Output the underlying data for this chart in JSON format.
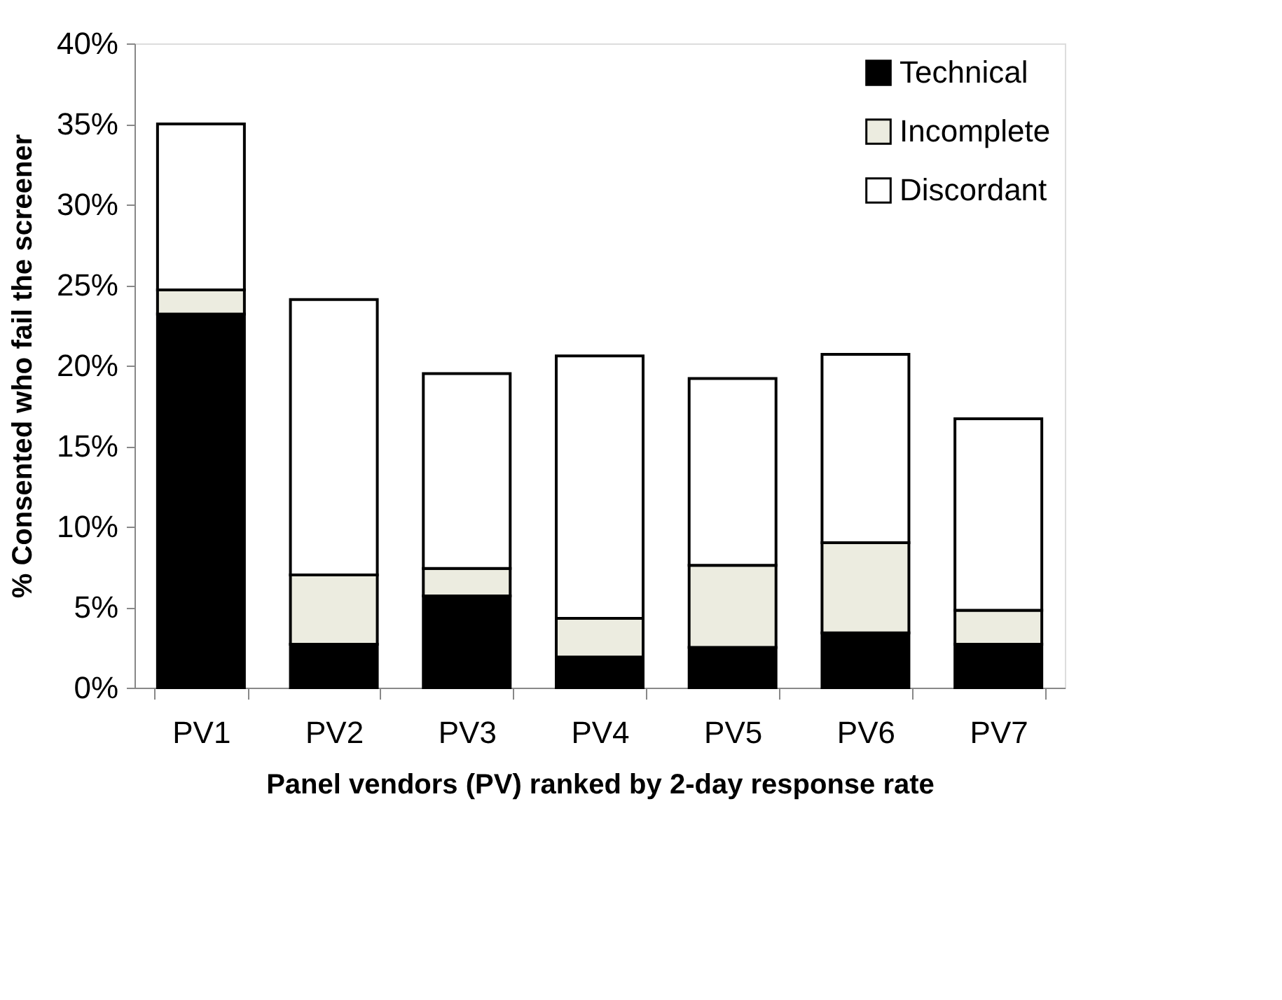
{
  "chart_data": {
    "type": "bar",
    "stacked": true,
    "xlabel": "Panel vendors (PV) ranked by 2-day response rate",
    "ylabel": "% Consented who fail the screener",
    "categories": [
      "PV1",
      "PV2",
      "PV3",
      "PV4",
      "PV5",
      "PV6",
      "PV7"
    ],
    "series": [
      {
        "name": "Technical",
        "color": "#000000",
        "values": [
          23.2,
          2.7,
          5.7,
          1.9,
          2.5,
          3.4,
          2.7
        ]
      },
      {
        "name": "Incomplete",
        "color": "#ecece0",
        "values": [
          1.5,
          4.3,
          1.7,
          2.4,
          5.1,
          5.6,
          2.1
        ]
      },
      {
        "name": "Discordant",
        "color": "#ffffff",
        "values": [
          10.3,
          17.1,
          12.1,
          16.3,
          11.6,
          11.7,
          11.9
        ]
      }
    ],
    "ylim": [
      0,
      40
    ],
    "yticks": [
      {
        "value": 0,
        "label": "0%"
      },
      {
        "value": 5,
        "label": "5%"
      },
      {
        "value": 10,
        "label": "10%"
      },
      {
        "value": 15,
        "label": "15%"
      },
      {
        "value": 20,
        "label": "20%"
      },
      {
        "value": 25,
        "label": "25%"
      },
      {
        "value": 30,
        "label": "30%"
      },
      {
        "value": 35,
        "label": "35%"
      },
      {
        "value": 40,
        "label": "40%"
      }
    ],
    "grid": false,
    "legend": "top right"
  }
}
